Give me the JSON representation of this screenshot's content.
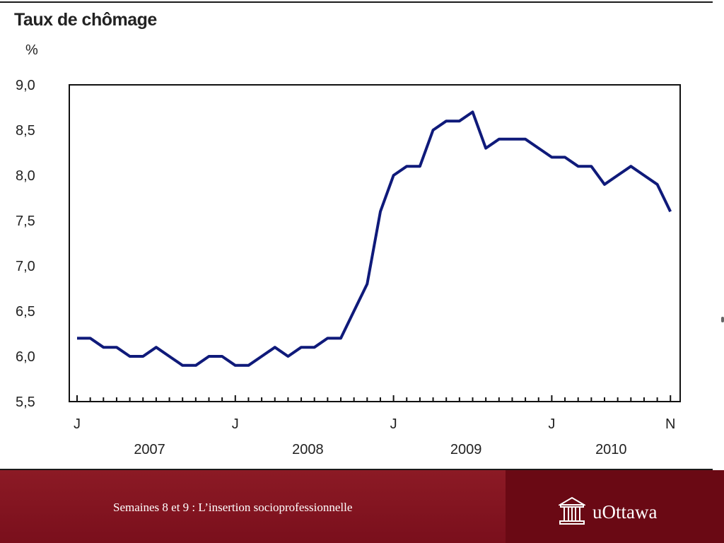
{
  "slide": {
    "footer_text": "Semaines 8 et 9 : L’insertion socioprofessionnelle",
    "logo_text": "uOttawa",
    "logo_icon": "university-building-icon"
  },
  "chart_data": {
    "type": "line",
    "title": "Taux de chômage",
    "ylabel": "%",
    "ylim": [
      5.5,
      9.0
    ],
    "yticks": [
      "9,0",
      "8,5",
      "8,0",
      "7,5",
      "7,0",
      "6,5",
      "6,0",
      "5,5"
    ],
    "ytick_values": [
      9.0,
      8.5,
      8.0,
      7.5,
      7.0,
      6.5,
      6.0,
      5.5
    ],
    "x_start": "2007-01",
    "month_labels": [
      "J",
      "J",
      "J",
      "J",
      "N"
    ],
    "year_labels": [
      "2007",
      "2008",
      "2009",
      "2010"
    ],
    "grid": false,
    "line_color": "#0f1a7a",
    "series": [
      {
        "values": [
          6.2,
          6.2,
          6.1,
          6.1,
          6.0,
          6.0,
          6.1,
          6.0,
          5.9,
          5.9,
          6.0,
          6.0,
          5.9,
          5.9,
          6.0,
          6.1,
          6.0,
          6.1,
          6.1,
          6.2,
          6.2,
          6.5,
          6.8,
          7.6,
          8.0,
          8.1,
          8.1,
          8.5,
          8.6,
          8.6,
          8.7,
          8.3,
          8.4,
          8.4,
          8.4,
          8.3,
          8.2,
          8.2,
          8.1,
          8.1,
          7.9,
          8.0,
          8.1,
          8.0,
          7.9,
          7.6
        ]
      }
    ]
  }
}
